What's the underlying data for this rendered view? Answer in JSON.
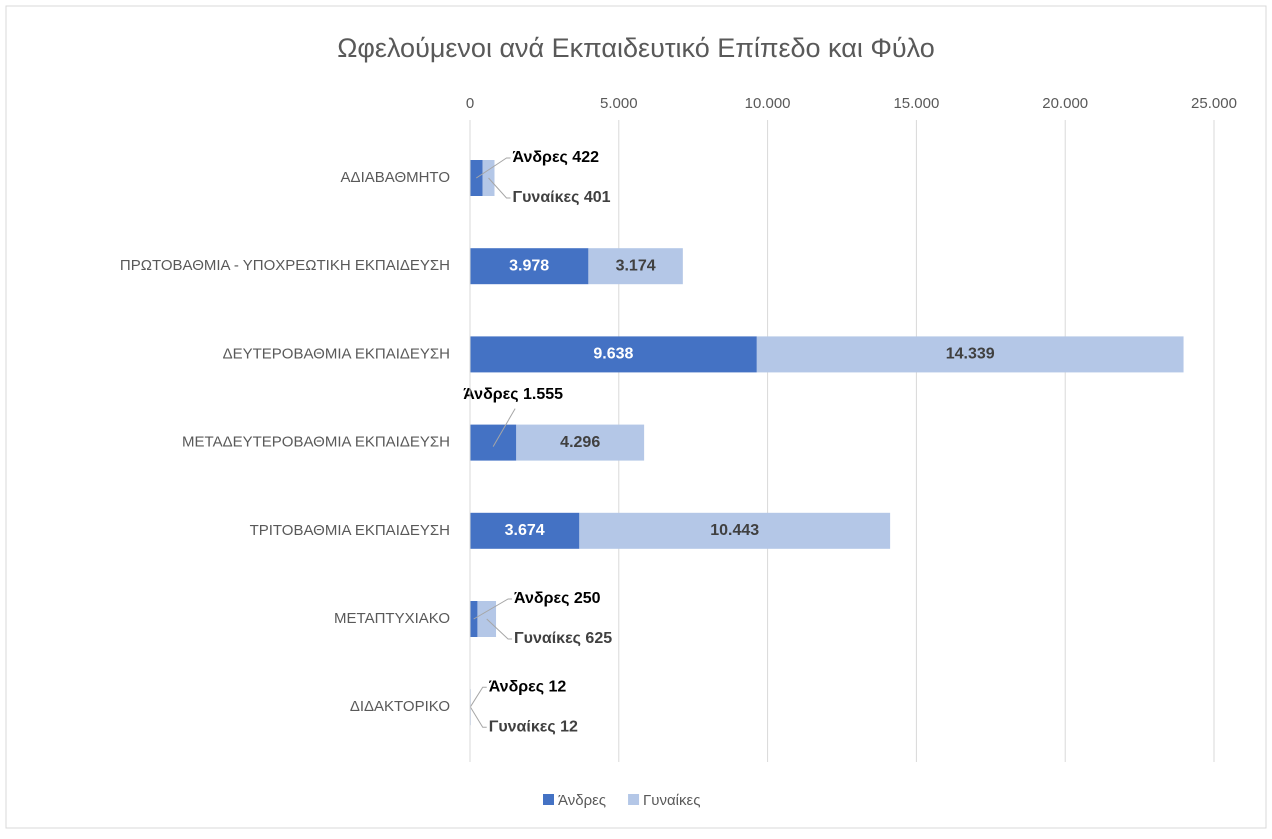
{
  "chart_data": {
    "type": "stacked-bar-horizontal",
    "title": "Ωφελούμενοι ανά Εκπαιδευτικό Επίπεδο και Φύλο",
    "categories": [
      "ΑΔΙΑΒΑΘΜΗΤΟ",
      "ΠΡΩΤΟΒΑΘΜΙΑ - ΥΠΟΧΡΕΩΤΙΚΗ ΕΚΠΑΙΔΕΥΣΗ",
      "ΔΕΥΤΕΡΟΒΑΘΜΙΑ ΕΚΠΑΙΔΕΥΣΗ",
      "ΜΕΤΑΔΕΥΤΕΡΟΒΑΘΜΙΑ ΕΚΠΑΙΔΕΥΣΗ",
      "ΤΡΙΤΟΒΑΘΜΙΑ ΕΚΠΑΙΔΕΥΣΗ",
      "ΜΕΤΑΠΤΥΧΙΑΚΟ",
      "ΔΙΔΑΚΤΟΡΙΚΟ"
    ],
    "series": [
      {
        "name": "Άνδρες",
        "color": "#4472c4",
        "values": [
          422,
          3978,
          9638,
          1555,
          3674,
          250,
          12
        ],
        "value_labels": [
          "Άνδρες 422",
          "3.978",
          "9.638",
          "Άνδρες 1.555",
          "3.674",
          "Άνδρες 250",
          "Άνδρες 12"
        ]
      },
      {
        "name": "Γυναίκες",
        "color": "#b4c7e7",
        "values": [
          401,
          3174,
          14339,
          4296,
          10443,
          625,
          12
        ],
        "value_labels": [
          "Γυναίκες 401",
          "3.174",
          "14.339",
          "4.296",
          "10.443",
          "Γυναίκες 625",
          "Γυναίκες 12"
        ]
      }
    ],
    "xlim": [
      0,
      25000
    ],
    "xticks": [
      0,
      {
        "value": 5000,
        "label": "5.000"
      },
      {
        "value": 10000,
        "label": "10.000"
      },
      {
        "value": 15000,
        "label": "15.000"
      },
      {
        "value": 20000,
        "label": "20.000"
      },
      {
        "value": 25000,
        "label": "25.000"
      }
    ],
    "grid": true,
    "legend": "bottom"
  }
}
